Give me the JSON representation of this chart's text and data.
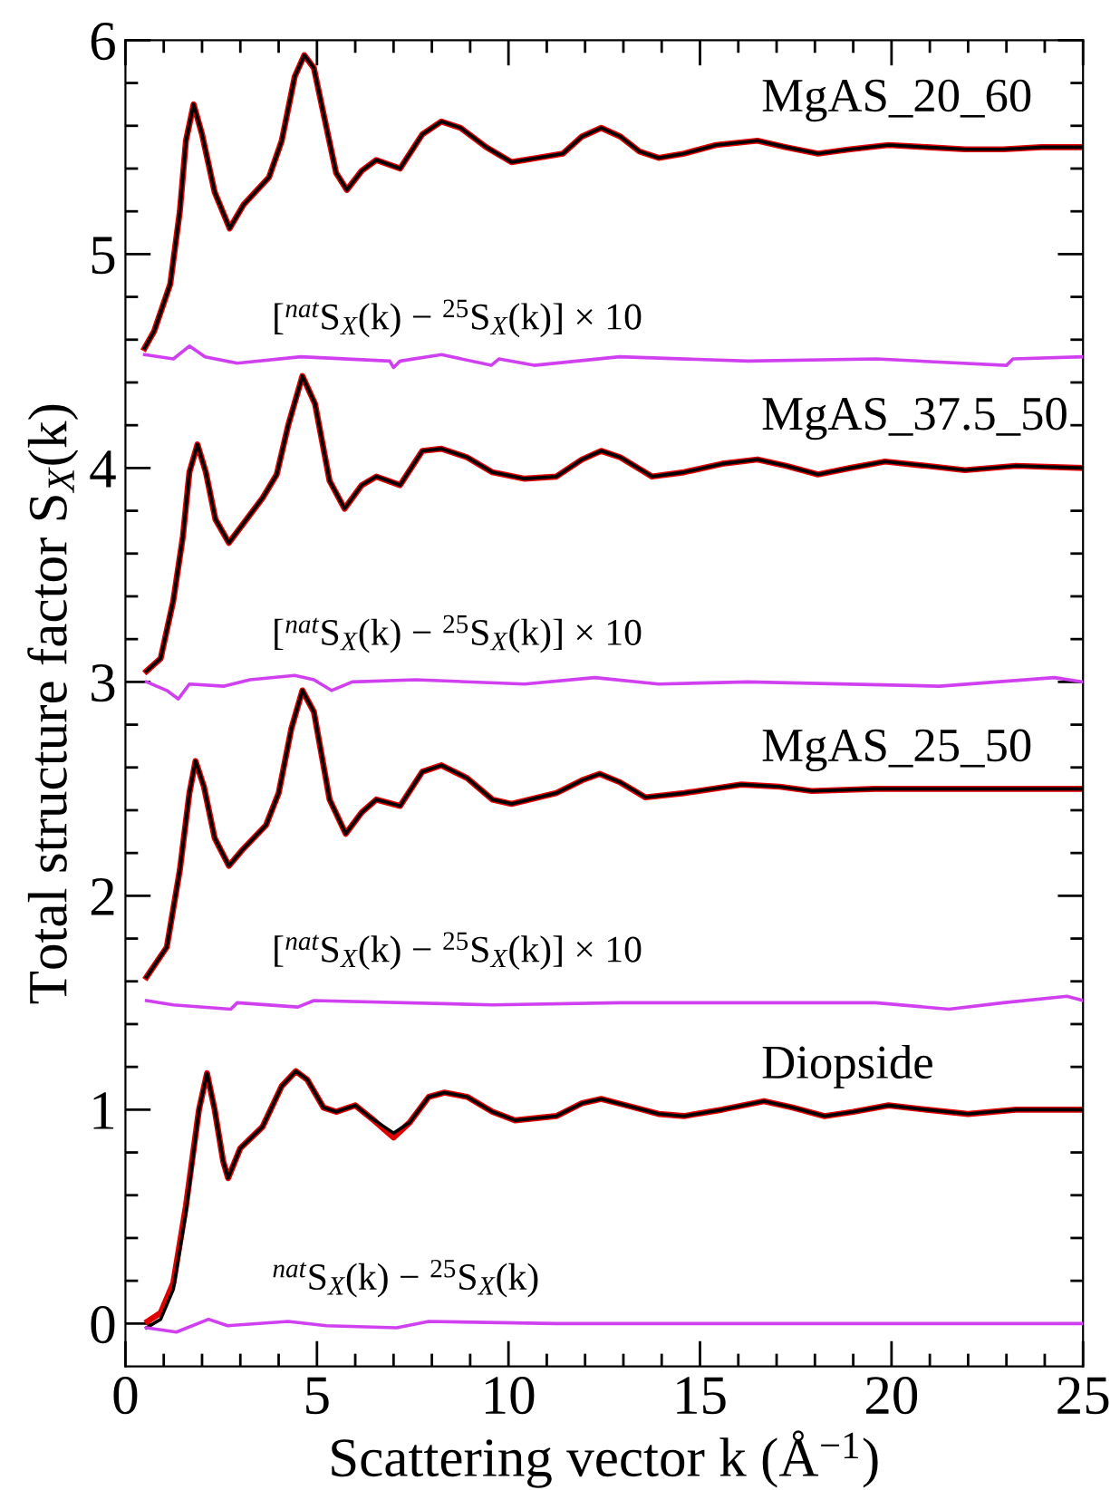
{
  "chart_data": {
    "type": "line",
    "xlabel": "Scattering vector k (Å$^{−1}$)",
    "ylabel": "Total structure factor S$_{X}$(k)",
    "xlim": [
      0,
      25
    ],
    "ylim": [
      -0.2,
      6
    ],
    "xticks": [
      0,
      {
        "value": 1,
        "label": null
      },
      {
        "value": 2,
        "label": null
      },
      {
        "value": 3,
        "label": null
      },
      {
        "value": 4,
        "label": null
      },
      5,
      {
        "value": 6,
        "label": null
      },
      {
        "value": 7,
        "label": null
      },
      {
        "value": 8,
        "label": null
      },
      {
        "value": 9,
        "label": null
      },
      10,
      {
        "value": 11,
        "label": null
      },
      {
        "value": 12,
        "label": null
      },
      {
        "value": 13,
        "label": null
      },
      {
        "value": 14,
        "label": null
      },
      15,
      {
        "value": 16,
        "label": null
      },
      {
        "value": 17,
        "label": null
      },
      {
        "value": 18,
        "label": null
      },
      {
        "value": 19,
        "label": null
      },
      20,
      {
        "value": 21,
        "label": null
      },
      {
        "value": 22,
        "label": null
      },
      {
        "value": 23,
        "label": null
      },
      {
        "value": 24,
        "label": null
      },
      25
    ],
    "yticks": [
      0,
      {
        "value": 0.2,
        "label": null
      },
      {
        "value": 0.4,
        "label": null
      },
      {
        "value": 0.6,
        "label": null
      },
      {
        "value": 0.8,
        "label": null
      },
      1,
      {
        "value": 1.2,
        "label": null
      },
      {
        "value": 1.4,
        "label": null
      },
      {
        "value": 1.6,
        "label": null
      },
      {
        "value": 1.8,
        "label": null
      },
      2,
      {
        "value": 2.2,
        "label": null
      },
      {
        "value": 2.4,
        "label": null
      },
      {
        "value": 2.6,
        "label": null
      },
      {
        "value": 2.8,
        "label": null
      },
      3,
      {
        "value": 3.2,
        "label": null
      },
      {
        "value": 3.4,
        "label": null
      },
      {
        "value": 3.6,
        "label": null
      },
      {
        "value": 3.8,
        "label": null
      },
      4,
      {
        "value": 4.2,
        "label": null
      },
      {
        "value": 4.4,
        "label": null
      },
      {
        "value": 4.6,
        "label": null
      },
      {
        "value": 4.8,
        "label": null
      },
      5,
      {
        "value": 5.2,
        "label": null
      },
      {
        "value": 5.4,
        "label": null
      },
      {
        "value": 5.6,
        "label": null
      },
      {
        "value": 5.8,
        "label": null
      },
      6
    ],
    "grid": false,
    "line_style": "solid",
    "marker": "none",
    "series": [
      {
        "color": "#e00000",
        "x": [
          0.5,
          0.75,
          1.17,
          1.42,
          1.58,
          1.78,
          2.0,
          2.33,
          2.72,
          3.08,
          3.75,
          4.08,
          4.42,
          4.67,
          4.92,
          5.25,
          5.5,
          5.78,
          6.17,
          6.55,
          7.17,
          7.75,
          8.25,
          8.75,
          9.42,
          10.08,
          10.75,
          11.42,
          11.92,
          12.42,
          12.92,
          13.42,
          13.92,
          14.58,
          15.42,
          16.5,
          17.25,
          18.08,
          18.92,
          19.92,
          20.92,
          21.92,
          22.92,
          23.92,
          25
        ],
        "values": [
          4.56,
          4.64,
          4.86,
          5.2,
          5.53,
          5.7,
          5.56,
          5.29,
          5.12,
          5.23,
          5.36,
          5.53,
          5.83,
          5.93,
          5.87,
          5.59,
          5.38,
          5.3,
          5.39,
          5.44,
          5.4,
          5.56,
          5.62,
          5.59,
          5.5,
          5.43,
          5.45,
          5.47,
          5.55,
          5.59,
          5.55,
          5.48,
          5.45,
          5.47,
          5.51,
          5.53,
          5.5,
          5.47,
          5.49,
          5.51,
          5.5,
          5.49,
          5.49,
          5.5,
          5.5
        ]
      },
      {
        "color": "#000000",
        "x": [
          0.5,
          0.75,
          1.17,
          1.42,
          1.58,
          1.78,
          2.0,
          2.33,
          2.72,
          3.08,
          3.75,
          4.08,
          4.42,
          4.67,
          4.92,
          5.25,
          5.5,
          5.78,
          6.17,
          6.55,
          7.17,
          7.75,
          8.25,
          8.75,
          9.42,
          10.08,
          10.75,
          11.42,
          11.92,
          12.42,
          12.92,
          13.42,
          13.92,
          14.58,
          15.42,
          16.5,
          17.25,
          18.08,
          18.92,
          19.92,
          20.92,
          21.92,
          22.92,
          23.92,
          25
        ],
        "values": [
          4.56,
          4.64,
          4.86,
          5.2,
          5.53,
          5.7,
          5.56,
          5.29,
          5.12,
          5.23,
          5.36,
          5.53,
          5.83,
          5.93,
          5.87,
          5.59,
          5.38,
          5.3,
          5.39,
          5.44,
          5.4,
          5.56,
          5.62,
          5.59,
          5.5,
          5.43,
          5.45,
          5.47,
          5.55,
          5.59,
          5.55,
          5.48,
          5.45,
          5.47,
          5.51,
          5.53,
          5.5,
          5.47,
          5.49,
          5.51,
          5.5,
          5.49,
          5.49,
          5.5,
          5.5
        ]
      },
      {
        "color": "#d040f0",
        "x": [
          0.5,
          1.25,
          1.67,
          2.08,
          2.92,
          4.58,
          6.9,
          7.0,
          7.17,
          8.25,
          9.55,
          9.75,
          10.67,
          12.9,
          16.25,
          19.6,
          23.0,
          23.17,
          25
        ],
        "values": [
          4.53,
          4.51,
          4.57,
          4.52,
          4.49,
          4.52,
          4.5,
          4.47,
          4.5,
          4.53,
          4.48,
          4.51,
          4.48,
          4.52,
          4.5,
          4.51,
          4.48,
          4.51,
          4.52
        ]
      },
      {
        "color": "#e00000",
        "x": [
          0.55,
          0.92,
          1.25,
          1.5,
          1.67,
          1.88,
          2.1,
          2.35,
          2.7,
          3.58,
          3.95,
          4.25,
          4.62,
          4.95,
          5.33,
          5.72,
          6.17,
          6.55,
          7.17,
          7.75,
          8.25,
          8.92,
          9.58,
          10.42,
          11.25,
          11.92,
          12.42,
          12.92,
          13.75,
          14.58,
          15.58,
          16.5,
          17.25,
          18.08,
          18.92,
          19.83,
          20.92,
          21.92,
          23.25,
          25
        ],
        "values": [
          3.05,
          3.11,
          3.38,
          3.68,
          3.98,
          4.11,
          3.98,
          3.76,
          3.65,
          3.86,
          3.97,
          4.2,
          4.43,
          4.3,
          3.94,
          3.81,
          3.92,
          3.96,
          3.92,
          4.08,
          4.09,
          4.05,
          3.98,
          3.95,
          3.96,
          4.04,
          4.08,
          4.05,
          3.96,
          3.98,
          4.02,
          4.04,
          4.01,
          3.97,
          4.0,
          4.03,
          4.01,
          3.99,
          4.01,
          4.0
        ]
      },
      {
        "color": "#000000",
        "x": [
          0.55,
          0.92,
          1.25,
          1.5,
          1.67,
          1.88,
          2.1,
          2.35,
          2.7,
          3.58,
          3.95,
          4.25,
          4.62,
          4.95,
          5.33,
          5.72,
          6.17,
          6.55,
          7.17,
          7.75,
          8.25,
          8.92,
          9.58,
          10.42,
          11.25,
          11.92,
          12.42,
          12.92,
          13.75,
          14.58,
          15.58,
          16.5,
          17.25,
          18.08,
          18.92,
          19.83,
          20.92,
          21.92,
          23.25,
          25
        ],
        "values": [
          3.05,
          3.11,
          3.38,
          3.68,
          3.98,
          4.11,
          3.98,
          3.76,
          3.65,
          3.86,
          3.97,
          4.2,
          4.43,
          4.3,
          3.94,
          3.81,
          3.92,
          3.96,
          3.92,
          4.08,
          4.09,
          4.05,
          3.98,
          3.95,
          3.96,
          4.04,
          4.08,
          4.05,
          3.96,
          3.98,
          4.02,
          4.04,
          4.01,
          3.97,
          4.0,
          4.03,
          4.01,
          3.99,
          4.01,
          4.0
        ]
      },
      {
        "color": "#d040f0",
        "x": [
          0.55,
          1.08,
          1.38,
          1.67,
          2.58,
          3.25,
          4.42,
          4.92,
          5.38,
          5.92,
          7.58,
          10.42,
          12.25,
          13.92,
          16.25,
          21.25,
          24.25,
          25
        ],
        "values": [
          3.0,
          2.96,
          2.92,
          2.99,
          2.98,
          3.01,
          3.03,
          3.01,
          2.96,
          3.0,
          3.01,
          2.99,
          3.02,
          2.99,
          3.0,
          2.98,
          3.02,
          3.0
        ]
      },
      {
        "color": "#e00000",
        "x": [
          0.55,
          1.08,
          1.42,
          1.67,
          1.83,
          2.05,
          2.33,
          2.7,
          3.08,
          3.67,
          4.0,
          4.33,
          4.62,
          4.92,
          5.33,
          5.75,
          6.17,
          6.55,
          7.17,
          7.75,
          8.25,
          8.92,
          9.58,
          10.08,
          11.25,
          11.92,
          12.38,
          12.92,
          13.58,
          14.58,
          16.08,
          17.08,
          17.92,
          19.58,
          21.25,
          25
        ],
        "values": [
          1.62,
          1.76,
          2.12,
          2.48,
          2.63,
          2.51,
          2.27,
          2.14,
          2.22,
          2.33,
          2.48,
          2.78,
          2.96,
          2.86,
          2.45,
          2.29,
          2.39,
          2.45,
          2.42,
          2.58,
          2.61,
          2.55,
          2.45,
          2.43,
          2.48,
          2.54,
          2.57,
          2.53,
          2.46,
          2.48,
          2.52,
          2.51,
          2.49,
          2.5,
          2.5,
          2.5
        ]
      },
      {
        "color": "#000000",
        "x": [
          0.55,
          1.08,
          1.42,
          1.67,
          1.83,
          2.05,
          2.33,
          2.7,
          3.08,
          3.67,
          4.0,
          4.33,
          4.62,
          4.92,
          5.33,
          5.75,
          6.17,
          6.55,
          7.17,
          7.75,
          8.25,
          8.92,
          9.58,
          10.08,
          11.25,
          11.92,
          12.38,
          12.92,
          13.58,
          14.58,
          16.08,
          17.08,
          17.92,
          19.58,
          21.25,
          25
        ],
        "values": [
          1.62,
          1.76,
          2.12,
          2.48,
          2.63,
          2.51,
          2.27,
          2.14,
          2.22,
          2.33,
          2.48,
          2.78,
          2.96,
          2.86,
          2.45,
          2.29,
          2.39,
          2.45,
          2.42,
          2.58,
          2.61,
          2.55,
          2.45,
          2.43,
          2.48,
          2.54,
          2.57,
          2.53,
          2.46,
          2.48,
          2.52,
          2.51,
          2.49,
          2.5,
          2.5,
          2.5
        ]
      },
      {
        "color": "#d040f0",
        "x": [
          0.55,
          1.25,
          2.75,
          2.92,
          4.5,
          4.92,
          9.58,
          12.92,
          19.58,
          21.5,
          22.92,
          24.58,
          25
        ],
        "values": [
          1.51,
          1.49,
          1.47,
          1.5,
          1.48,
          1.51,
          1.49,
          1.5,
          1.5,
          1.47,
          1.5,
          1.53,
          1.51
        ]
      },
      {
        "color": "#e00000",
        "x": [
          0.58,
          0.92,
          1.25,
          1.58,
          1.92,
          2.13,
          2.33,
          2.55,
          2.68,
          3.0,
          3.58,
          4.08,
          4.45,
          4.75,
          5.17,
          5.5,
          6.0,
          6.42,
          7.0,
          7.42,
          7.92,
          8.33,
          8.92,
          9.58,
          10.17,
          11.25,
          11.92,
          12.42,
          13.08,
          13.92,
          14.58,
          15.58,
          16.67,
          17.42,
          18.25,
          19.0,
          19.92,
          20.92,
          22.0,
          23.25,
          25
        ],
        "values": [
          0.01,
          0.05,
          0.19,
          0.55,
          1.0,
          1.17,
          1.0,
          0.76,
          0.68,
          0.82,
          0.92,
          1.11,
          1.18,
          1.14,
          1.01,
          0.99,
          1.02,
          0.96,
          0.87,
          0.94,
          1.06,
          1.08,
          1.06,
          0.99,
          0.95,
          0.97,
          1.03,
          1.05,
          1.02,
          0.98,
          0.97,
          1.0,
          1.04,
          1.01,
          0.97,
          0.99,
          1.02,
          1.0,
          0.98,
          1.0,
          1.0
        ]
      },
      {
        "color": "#000000",
        "x": [
          0.55,
          0.92,
          1.25,
          1.58,
          1.92,
          2.13,
          2.33,
          2.55,
          2.68,
          3.0,
          3.58,
          4.08,
          4.45,
          4.75,
          5.17,
          5.5,
          6.0,
          6.42,
          7.0,
          7.42,
          7.92,
          8.33,
          8.92,
          9.58,
          10.17,
          11.25,
          11.92,
          12.42,
          13.08,
          13.92,
          14.58,
          15.58,
          16.67,
          17.42,
          18.25,
          19.0,
          19.92,
          20.92,
          22.0,
          23.25,
          25
        ],
        "values": [
          -0.02,
          0.02,
          0.16,
          0.52,
          1.0,
          1.17,
          1.0,
          0.76,
          0.68,
          0.82,
          0.92,
          1.11,
          1.18,
          1.14,
          1.01,
          0.99,
          1.02,
          0.96,
          0.89,
          0.94,
          1.06,
          1.08,
          1.06,
          0.99,
          0.95,
          0.97,
          1.03,
          1.05,
          1.02,
          0.98,
          0.97,
          1.0,
          1.04,
          1.01,
          0.97,
          0.99,
          1.02,
          1.0,
          0.98,
          1.0,
          1.0
        ]
      },
      {
        "color": "#d040f0",
        "x": [
          0.55,
          1.33,
          2.17,
          2.67,
          4.25,
          5.25,
          7.08,
          7.92,
          11.25,
          25
        ],
        "values": [
          -0.02,
          -0.04,
          0.02,
          -0.01,
          0.01,
          -0.01,
          -0.02,
          0.01,
          0.0,
          0.0
        ]
      }
    ],
    "annotations": [
      "MgAS_20_60",
      "[$^{nat}$S$_{X}$(k) − $^{25}$S$_{X}$(k)] × 10",
      "MgAS_37.5_50",
      "[$^{nat}$S$_{X}$(k) − $^{25}$S$_{X}$(k)] × 10",
      "MgAS_25_50",
      "[$^{nat}$S$_{X}$(k) − $^{25}$S$_{X}$(k)] × 10",
      "Diopside",
      "$^{nat}$S$_{X}$(k) − $^{25}$S$_{X}$(k)"
    ]
  }
}
